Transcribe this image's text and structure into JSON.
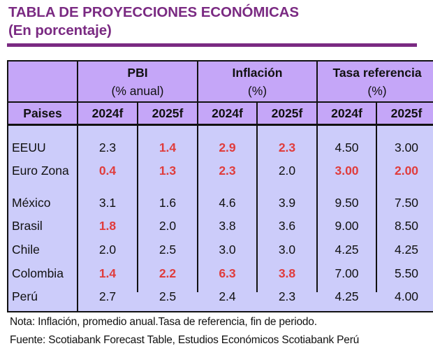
{
  "title": "TABLA DE PROYECCIONES ECONÓMICAS",
  "subtitle": "(En porcentaje)",
  "colors": {
    "brand_purple": "#7a2a82",
    "header_bg": "#c5a6f8",
    "body_bg": "#ccccfa",
    "highlight_red": "#e03c3c"
  },
  "table": {
    "country_header": "Paises",
    "groups": [
      {
        "label": "PBI",
        "unit": "(% anual)"
      },
      {
        "label": "Inflación",
        "unit": "(%)"
      },
      {
        "label": "Tasa referencia",
        "unit": "(%)"
      }
    ],
    "years": [
      "2024f",
      "2025f",
      "2024f",
      "2025f",
      "2024f",
      "2025f"
    ],
    "rows": [
      {
        "country": "EEUU",
        "values": [
          "2.3",
          "1.4",
          "2.9",
          "2.3",
          "4.50",
          "3.00"
        ],
        "highlight": [
          false,
          true,
          true,
          true,
          false,
          false
        ]
      },
      {
        "country": "Euro Zona",
        "values": [
          "0.4",
          "1.3",
          "2.3",
          "2.0",
          "3.00",
          "2.00"
        ],
        "highlight": [
          true,
          true,
          true,
          false,
          true,
          true
        ]
      },
      {
        "country": "México",
        "values": [
          "3.1",
          "1.6",
          "4.6",
          "3.9",
          "9.50",
          "7.50"
        ],
        "highlight": [
          false,
          false,
          false,
          false,
          false,
          false
        ]
      },
      {
        "country": "Brasil",
        "values": [
          "1.8",
          "2.0",
          "3.8",
          "3.6",
          "9.00",
          "8.50"
        ],
        "highlight": [
          true,
          false,
          false,
          false,
          false,
          false
        ]
      },
      {
        "country": "Chile",
        "values": [
          "2.0",
          "2.5",
          "3.0",
          "3.0",
          "4.25",
          "4.25"
        ],
        "highlight": [
          false,
          false,
          false,
          false,
          false,
          false
        ]
      },
      {
        "country": "Colombia",
        "values": [
          "1.4",
          "2.2",
          "6.3",
          "3.8",
          "7.00",
          "5.50"
        ],
        "highlight": [
          true,
          true,
          true,
          true,
          false,
          false
        ]
      },
      {
        "country": "Perú",
        "values": [
          "2.7",
          "2.5",
          "2.4",
          "2.3",
          "4.25",
          "4.00"
        ],
        "highlight": [
          false,
          false,
          false,
          false,
          false,
          false
        ]
      }
    ]
  },
  "notes": {
    "nota": "Nota: Inflación, promedio anual.Tasa de referencia, fin de periodo.",
    "fuente": "Fuente: Scotiabank Forecast Table, Estudios Económicos Scotiabank Perú"
  }
}
